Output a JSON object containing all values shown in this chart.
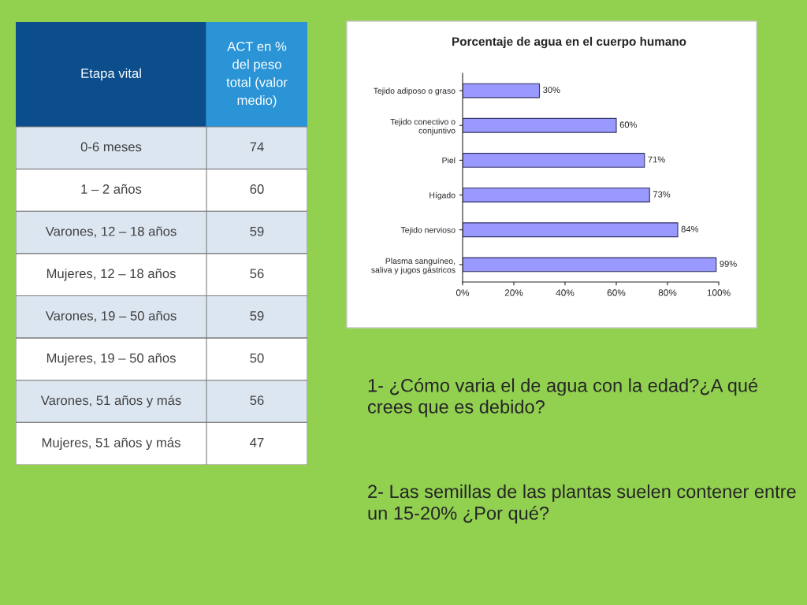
{
  "chart_data": [
    {
      "type": "other",
      "xlabel": "Etapa vital",
      "ylabel": "ACT en %\ndel peso\ntotal (valor\nmedio)",
      "categories": [
        "0-6 meses",
        "1 – 2 años",
        "Varones, 12 – 18 años",
        "Mujeres, 12 – 18 años",
        "Varones, 19 – 50 años",
        "Mujeres, 19 – 50 años",
        "Varones, 51 años y más",
        "Mujeres, 51 años y más"
      ],
      "values": [
        74,
        60,
        59,
        56,
        59,
        50,
        56,
        47
      ],
      "data_labels": true
    },
    {
      "type": "bar",
      "orientation": "horizontal",
      "title": "Porcentaje de agua en el cuerpo humano",
      "categories": [
        "Tejido adiposo o graso",
        "Tejido conectivo o\nconjuntivo",
        "Piel",
        "Hígado",
        "Tejido nervioso",
        "Plasma sanguíneo,\nsaliva y jugos gástricos"
      ],
      "values": [
        30,
        60,
        71,
        73,
        84,
        99
      ],
      "value_labels": [
        "30%",
        "60%",
        "71%",
        "73%",
        "84%",
        "99%"
      ],
      "color": "#9999ff",
      "xlim": [
        0,
        100
      ],
      "xticks": [
        {
          "value": 0,
          "label": "0%"
        },
        {
          "value": 20,
          "label": "20%"
        },
        {
          "value": 40,
          "label": "40%"
        },
        {
          "value": 60,
          "label": "60%"
        },
        {
          "value": 80,
          "label": "80%"
        },
        {
          "value": 100,
          "label": "100%"
        }
      ],
      "grid": false,
      "legend": false,
      "annotations": [
        "1- ¿Cómo varia el de agua con la edad?¿A qué crees que es debido?",
        "2- Las semillas de las plantas suelen contener entre un 15-20% ¿Por qué?"
      ]
    }
  ]
}
